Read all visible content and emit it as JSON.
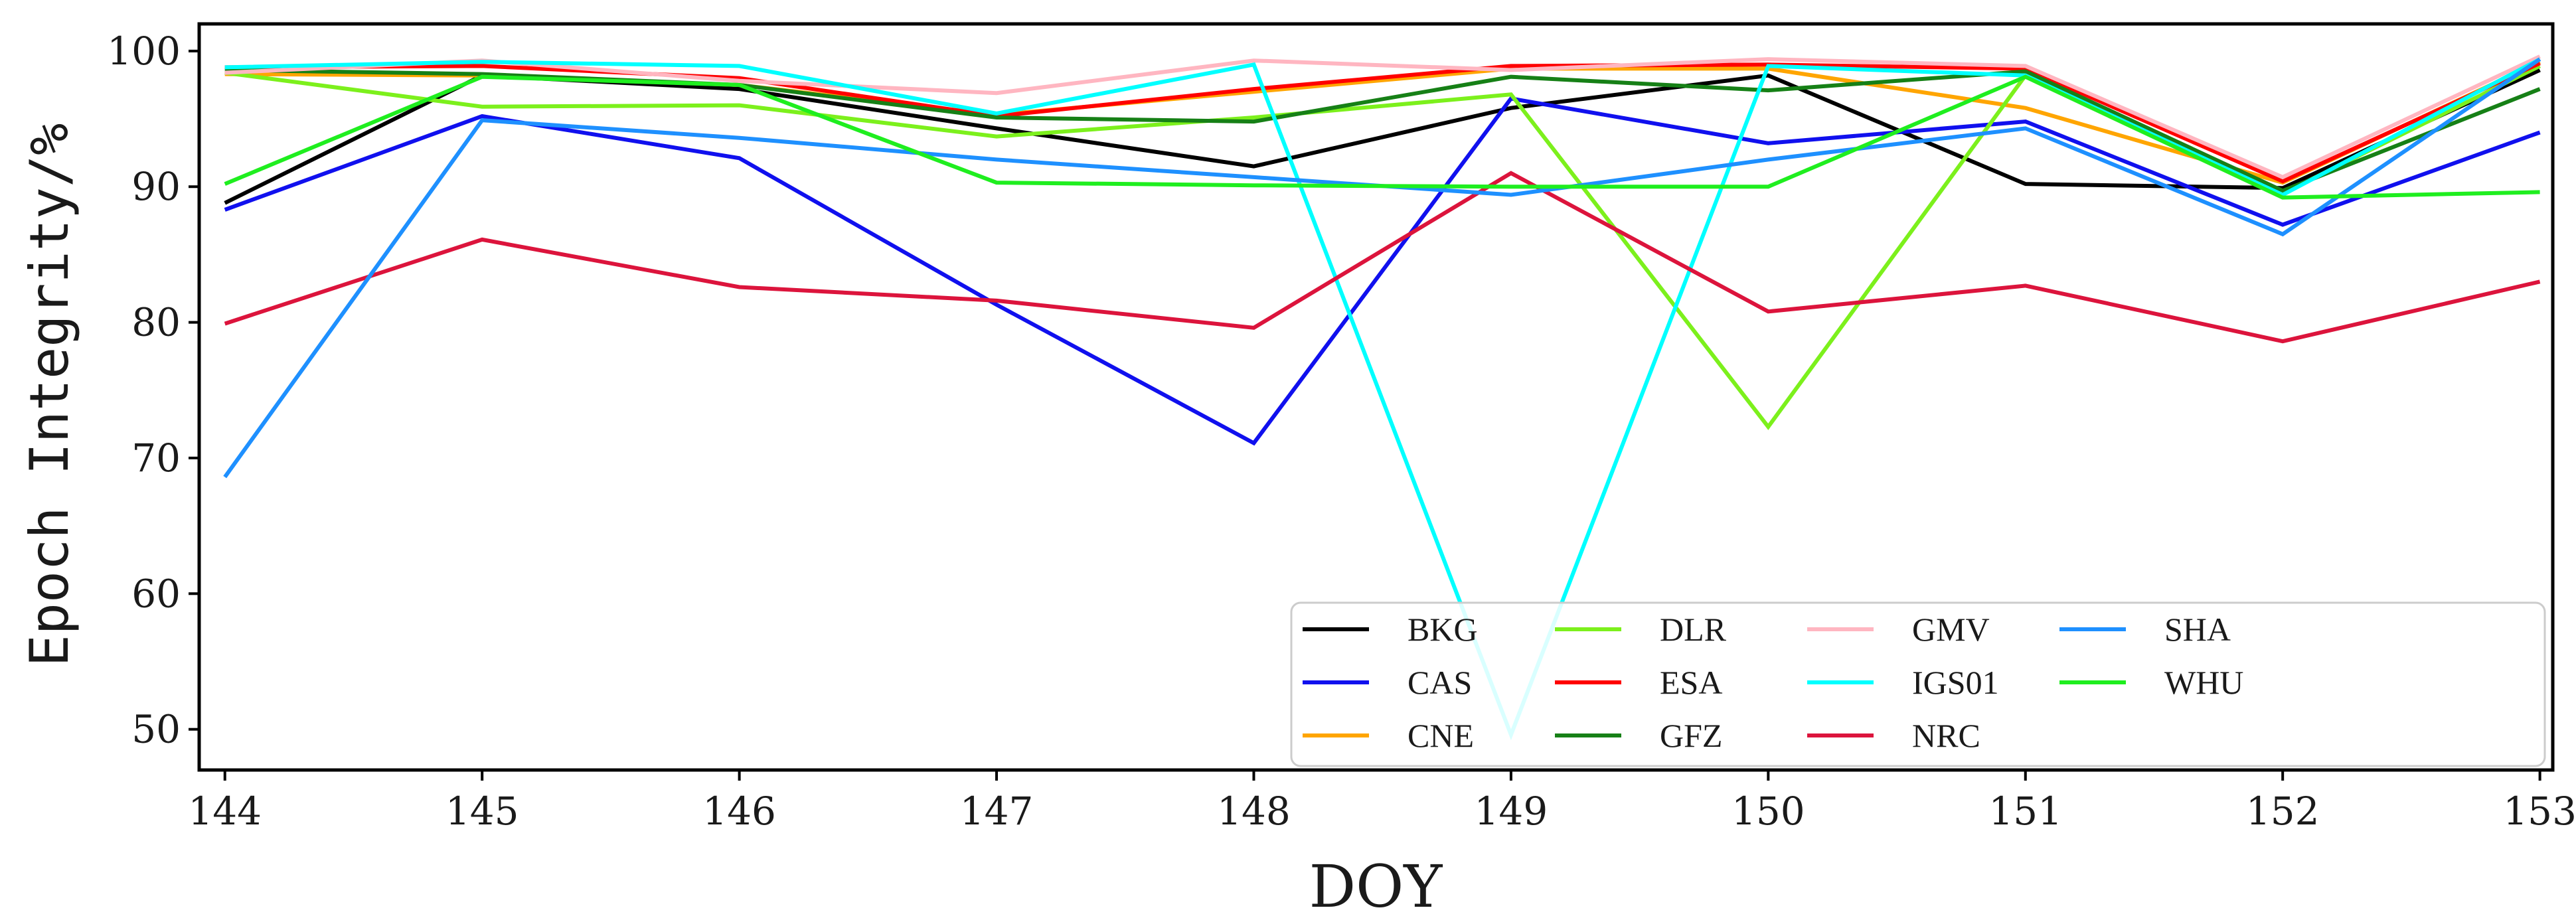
{
  "chart_data": {
    "type": "line",
    "title": "",
    "xlabel": "DOY",
    "ylabel": "Epoch Integrity/%",
    "xlim": [
      143.9,
      153.05
    ],
    "ylim": [
      47,
      102
    ],
    "x": [
      144,
      145,
      146,
      147,
      148,
      149,
      150,
      151,
      152,
      153
    ],
    "x_ticks": [
      "144",
      "145",
      "146",
      "147",
      "148",
      "149",
      "150",
      "151",
      "152",
      "153"
    ],
    "y_ticks": [
      50,
      60,
      70,
      80,
      90,
      100
    ],
    "y_tick_labels": [
      "50",
      "60",
      "70",
      "80",
      "90",
      "100"
    ],
    "grid": false,
    "legend_position": "lower-right",
    "series": [
      {
        "name": "BKG",
        "color": "#000000",
        "values": [
          88.8,
          98.2,
          97.2,
          94.3,
          91.5,
          95.8,
          98.2,
          90.2,
          89.9,
          98.6
        ]
      },
      {
        "name": "CAS",
        "color": "#1010ee",
        "values": [
          88.3,
          95.2,
          92.1,
          81.3,
          71.1,
          96.5,
          93.2,
          94.8,
          87.2,
          94.0
        ]
      },
      {
        "name": "CNE",
        "color": "#ffa500",
        "values": [
          98.3,
          98.2,
          97.5,
          95.3,
          97.0,
          98.7,
          98.7,
          95.8,
          90.3,
          99.2
        ]
      },
      {
        "name": "DLR",
        "color": "#7cf01c",
        "values": [
          98.4,
          95.9,
          96.0,
          93.7,
          95.1,
          96.8,
          72.3,
          98.2,
          89.5,
          98.9
        ]
      },
      {
        "name": "ESA",
        "color": "#ff0000",
        "values": [
          98.8,
          98.9,
          98.0,
          95.2,
          97.2,
          98.9,
          99.0,
          98.7,
          90.4,
          99.1
        ]
      },
      {
        "name": "GFZ",
        "color": "#168016",
        "values": [
          98.6,
          98.3,
          97.5,
          95.1,
          94.8,
          98.1,
          97.1,
          98.5,
          89.7,
          97.2
        ]
      },
      {
        "name": "GMV",
        "color": "#ffb6c1",
        "values": [
          98.4,
          99.3,
          97.8,
          96.9,
          99.3,
          98.6,
          99.4,
          98.9,
          90.7,
          99.6
        ]
      },
      {
        "name": "IGS01",
        "color": "#00ffff",
        "values": [
          98.8,
          99.2,
          98.9,
          95.4,
          99.0,
          49.6,
          98.9,
          98.2,
          89.4,
          99.4
        ]
      },
      {
        "name": "NRC",
        "color": "#dc143c",
        "values": [
          79.9,
          86.1,
          82.6,
          81.6,
          79.6,
          91.0,
          80.8,
          82.7,
          78.6,
          83.0
        ]
      },
      {
        "name": "SHA",
        "color": "#1e90ff",
        "values": [
          68.6,
          94.9,
          93.6,
          92.0,
          90.7,
          89.4,
          92.0,
          94.3,
          86.5,
          99.4
        ]
      },
      {
        "name": "WHU",
        "color": "#1fee1f",
        "values": [
          90.2,
          98.1,
          97.5,
          90.3,
          90.1,
          90.0,
          90.0,
          98.1,
          89.2,
          89.6
        ]
      }
    ]
  }
}
